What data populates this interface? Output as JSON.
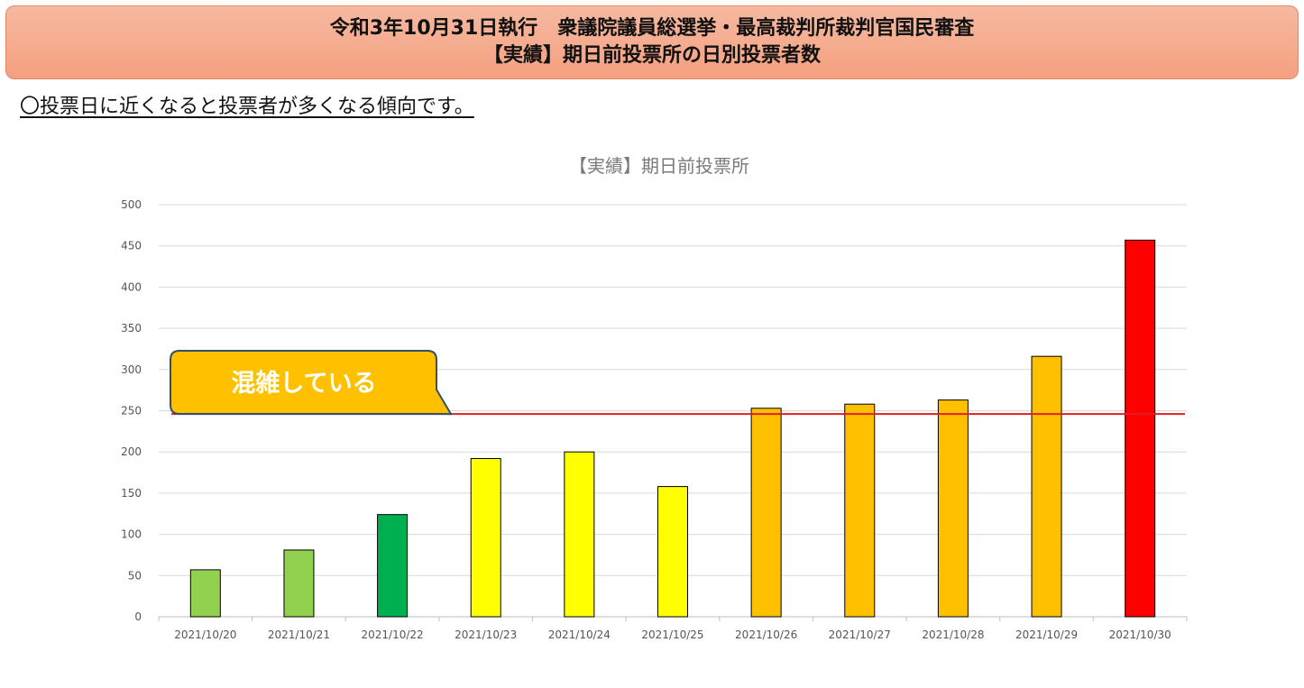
{
  "header": {
    "line1": "令和3年10月31日執行　衆議院議員総選挙・最高裁判所裁判官国民審査",
    "line2": "【実績】期日前投票所の日別投票者数"
  },
  "note": "〇投票日に近くなると投票者が多くなる傾向です。",
  "chart_data": {
    "type": "bar",
    "title": "【実績】期日前投票所",
    "categories": [
      "2021/10/20",
      "2021/10/21",
      "2021/10/22",
      "2021/10/23",
      "2021/10/24",
      "2021/10/25",
      "2021/10/26",
      "2021/10/27",
      "2021/10/28",
      "2021/10/29",
      "2021/10/30"
    ],
    "values": [
      57,
      81,
      124,
      192,
      200,
      158,
      253,
      258,
      263,
      316,
      457
    ],
    "bar_colors": [
      "#92d050",
      "#92d050",
      "#00b050",
      "#ffff00",
      "#ffff00",
      "#ffff00",
      "#ffc000",
      "#ffc000",
      "#ffc000",
      "#ffc000",
      "#ff0000"
    ],
    "ylim": [
      0,
      500
    ],
    "yticks": [
      0,
      50,
      100,
      150,
      200,
      250,
      300,
      350,
      400,
      450,
      500
    ],
    "reference_line": {
      "value": 246,
      "color": "#e02020"
    },
    "annotation": {
      "text": "混雑している",
      "color": "#ffc000"
    },
    "grid": true,
    "gridline_color": "#d9d9d9"
  }
}
